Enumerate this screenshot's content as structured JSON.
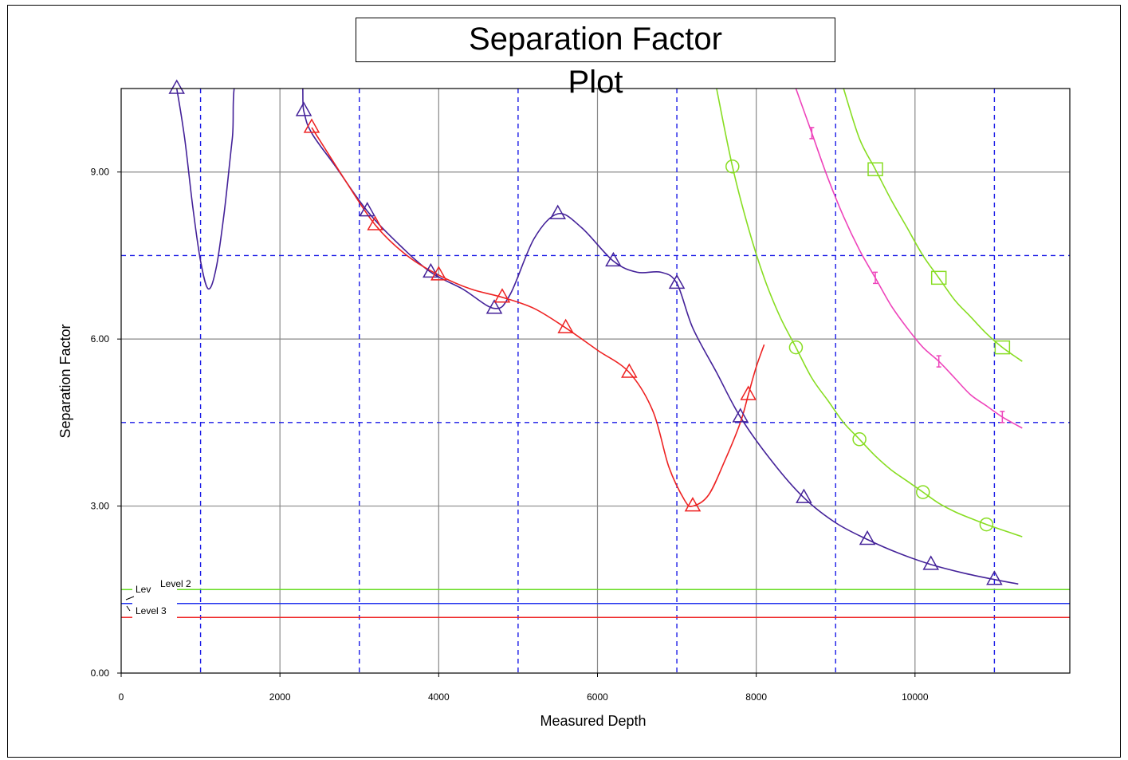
{
  "chart_data": {
    "type": "line",
    "title_lines": [
      "Separation Factor",
      "Plot"
    ],
    "xlabel": "Measured Depth",
    "ylabel": "Separation Factor",
    "xlim": [
      0,
      11950
    ],
    "ylim": [
      0,
      10.5
    ],
    "x_ticks": [
      0,
      2000,
      4000,
      6000,
      8000,
      10000
    ],
    "x_tick_labels": [
      "0",
      "2000",
      "4000",
      "6000",
      "8000",
      "10000"
    ],
    "y_ticks": [
      0,
      3,
      6,
      9
    ],
    "y_tick_labels": [
      "0.00",
      "3.00",
      "6.00",
      "9.00"
    ],
    "grid": true,
    "dashed_x_lines": [
      1000,
      3000,
      5000,
      7000,
      9000,
      11000
    ],
    "dashed_y_lines": [
      4.5,
      7.5
    ],
    "levels": [
      {
        "label": "Level 2",
        "value": 1.5,
        "color": "#66dd22"
      },
      {
        "label": "",
        "value": 1.25,
        "color": "#2233ee"
      },
      {
        "label": "Level 3",
        "value": 1.0,
        "color": "#ee2222"
      }
    ],
    "level_label_fragment": "Lev",
    "series": [
      {
        "color": "#442299",
        "marker": "triangle",
        "curve": [
          [
            600,
            11.2
          ],
          [
            700,
            10.5
          ],
          [
            800,
            9.6
          ],
          [
            900,
            8.4
          ],
          [
            1000,
            7.4
          ],
          [
            1100,
            6.9
          ],
          [
            1200,
            7.3
          ],
          [
            1300,
            8.3
          ],
          [
            1400,
            9.6
          ],
          [
            1500,
            10.8
          ],
          [
            2200,
            10.9
          ],
          [
            2300,
            10.1
          ],
          [
            2400,
            9.7
          ],
          [
            2700,
            9.1
          ],
          [
            3100,
            8.3
          ],
          [
            3500,
            7.7
          ],
          [
            3900,
            7.2
          ],
          [
            4300,
            6.9
          ],
          [
            4700,
            6.55
          ],
          [
            4900,
            6.8
          ],
          [
            5200,
            7.8
          ],
          [
            5500,
            8.25
          ],
          [
            5800,
            8.0
          ],
          [
            6200,
            7.4
          ],
          [
            6500,
            7.2
          ],
          [
            6800,
            7.2
          ],
          [
            7000,
            7.0
          ],
          [
            7200,
            6.2
          ],
          [
            7500,
            5.4
          ],
          [
            7800,
            4.6
          ],
          [
            8200,
            3.8
          ],
          [
            8600,
            3.15
          ],
          [
            9000,
            2.7
          ],
          [
            9400,
            2.4
          ],
          [
            9800,
            2.15
          ],
          [
            10200,
            1.95
          ],
          [
            10600,
            1.8
          ],
          [
            11000,
            1.68
          ],
          [
            11300,
            1.6
          ]
        ],
        "markers": [
          [
            700,
            10.5
          ],
          [
            2300,
            10.1
          ],
          [
            3100,
            8.3
          ],
          [
            3900,
            7.2
          ],
          [
            4700,
            6.55
          ],
          [
            5500,
            8.25
          ],
          [
            6200,
            7.4
          ],
          [
            7000,
            7.0
          ],
          [
            7800,
            4.6
          ],
          [
            8600,
            3.15
          ],
          [
            9400,
            2.4
          ],
          [
            10200,
            1.95
          ],
          [
            11000,
            1.68
          ]
        ]
      },
      {
        "color": "#ee2222",
        "marker": "triangle",
        "curve": [
          [
            2400,
            9.8
          ],
          [
            2800,
            8.9
          ],
          [
            3200,
            8.05
          ],
          [
            3600,
            7.5
          ],
          [
            4000,
            7.15
          ],
          [
            4400,
            6.9
          ],
          [
            4800,
            6.75
          ],
          [
            5200,
            6.55
          ],
          [
            5600,
            6.2
          ],
          [
            6000,
            5.8
          ],
          [
            6400,
            5.4
          ],
          [
            6700,
            4.7
          ],
          [
            6900,
            3.7
          ],
          [
            7100,
            3.1
          ],
          [
            7200,
            3.0
          ],
          [
            7400,
            3.2
          ],
          [
            7600,
            3.8
          ],
          [
            7800,
            4.5
          ],
          [
            7900,
            5.0
          ],
          [
            8000,
            5.5
          ],
          [
            8100,
            5.9
          ]
        ],
        "markers": [
          [
            2400,
            9.8
          ],
          [
            3200,
            8.05
          ],
          [
            4000,
            7.15
          ],
          [
            4800,
            6.75
          ],
          [
            5600,
            6.2
          ],
          [
            6400,
            5.4
          ],
          [
            7200,
            3.0
          ],
          [
            7900,
            5.0
          ]
        ]
      },
      {
        "color": "#88dd22",
        "marker": "circle",
        "curve": [
          [
            7500,
            10.5
          ],
          [
            7700,
            9.1
          ],
          [
            7900,
            8.0
          ],
          [
            8100,
            7.1
          ],
          [
            8300,
            6.4
          ],
          [
            8500,
            5.85
          ],
          [
            8700,
            5.3
          ],
          [
            8900,
            4.9
          ],
          [
            9100,
            4.5
          ],
          [
            9300,
            4.2
          ],
          [
            9500,
            3.9
          ],
          [
            9700,
            3.65
          ],
          [
            9900,
            3.45
          ],
          [
            10100,
            3.25
          ],
          [
            10300,
            3.05
          ],
          [
            10500,
            2.9
          ],
          [
            10700,
            2.78
          ],
          [
            10900,
            2.67
          ],
          [
            11100,
            2.57
          ],
          [
            11350,
            2.45
          ]
        ],
        "markers": [
          [
            7700,
            9.1
          ],
          [
            8500,
            5.85
          ],
          [
            9300,
            4.2
          ],
          [
            10100,
            3.25
          ],
          [
            10900,
            2.67
          ]
        ]
      },
      {
        "color": "#ee44bb",
        "marker": "tick",
        "curve": [
          [
            8500,
            10.5
          ],
          [
            8700,
            9.7
          ],
          [
            8900,
            8.9
          ],
          [
            9100,
            8.2
          ],
          [
            9300,
            7.6
          ],
          [
            9500,
            7.1
          ],
          [
            9700,
            6.6
          ],
          [
            9900,
            6.2
          ],
          [
            10100,
            5.85
          ],
          [
            10300,
            5.6
          ],
          [
            10500,
            5.3
          ],
          [
            10700,
            5.0
          ],
          [
            10900,
            4.8
          ],
          [
            11100,
            4.6
          ],
          [
            11350,
            4.4
          ]
        ],
        "markers": [
          [
            8700,
            9.7
          ],
          [
            9500,
            7.1
          ],
          [
            10300,
            5.6
          ],
          [
            11100,
            4.6
          ]
        ]
      },
      {
        "color": "#88dd22",
        "marker": "square",
        "curve": [
          [
            9100,
            10.5
          ],
          [
            9300,
            9.6
          ],
          [
            9500,
            9.05
          ],
          [
            9700,
            8.5
          ],
          [
            9900,
            8.0
          ],
          [
            10100,
            7.5
          ],
          [
            10300,
            7.1
          ],
          [
            10500,
            6.7
          ],
          [
            10700,
            6.4
          ],
          [
            10900,
            6.1
          ],
          [
            11100,
            5.85
          ],
          [
            11350,
            5.6
          ]
        ],
        "markers": [
          [
            9500,
            9.05
          ],
          [
            10300,
            7.1
          ],
          [
            11100,
            5.85
          ]
        ]
      }
    ]
  }
}
